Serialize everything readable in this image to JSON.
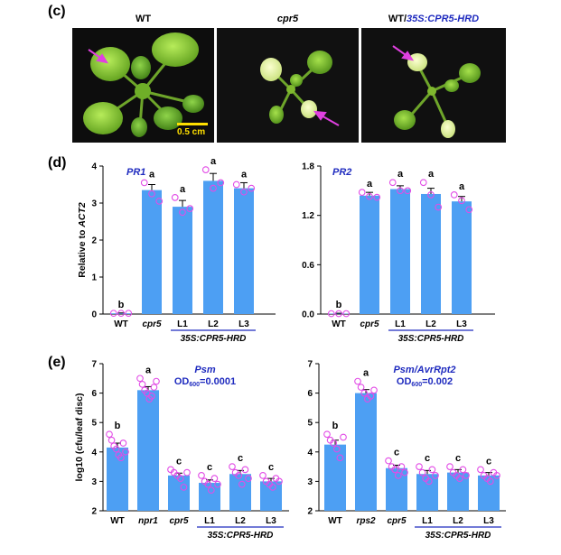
{
  "panels": {
    "c": "(c)",
    "d": "(d)",
    "e": "(e)"
  },
  "photos": [
    {
      "label": "WT",
      "italic": false
    },
    {
      "label": "cpr5",
      "italic": true
    },
    {
      "label_prefix": "WT/",
      "label_main": "35S:CPR5-HRD",
      "italic": true
    }
  ],
  "scale_bar": {
    "label": "0.5 cm"
  },
  "chart_data": [
    {
      "type": "bar",
      "panel": "d",
      "title": "PR1",
      "ylabel": "Relative to ACT2",
      "ylim": [
        0,
        4
      ],
      "yticks": [
        0,
        1,
        2,
        3,
        4
      ],
      "ytick_labels": [
        "0",
        "1",
        "2",
        "3",
        "4"
      ],
      "categories": [
        "WT",
        "cpr5",
        "L1",
        "L2",
        "L3"
      ],
      "values": [
        0.02,
        3.35,
        2.9,
        3.6,
        3.4
      ],
      "errors": [
        0.01,
        0.15,
        0.17,
        0.2,
        0.15
      ],
      "points": [
        [
          0.02,
          0.02,
          0.02
        ],
        [
          3.55,
          3.25,
          3.05
        ],
        [
          3.15,
          2.75,
          2.85
        ],
        [
          3.9,
          3.4,
          3.55
        ],
        [
          3.5,
          3.3,
          3.4
        ]
      ],
      "letters": [
        "b",
        "a",
        "a",
        "a",
        "a"
      ],
      "group_label": "35S:CPR5-HRD",
      "group_span": [
        2,
        4
      ]
    },
    {
      "type": "bar",
      "panel": "d",
      "title": "PR2",
      "ylabel": "",
      "ylim": [
        0,
        1.8
      ],
      "yticks": [
        0,
        0.6,
        1.2,
        1.8
      ],
      "ytick_labels": [
        "0.0",
        "0.6",
        "1.2",
        "1.8"
      ],
      "categories": [
        "WT",
        "cpr5",
        "L1",
        "L2",
        "L3"
      ],
      "values": [
        0.005,
        1.44,
        1.52,
        1.46,
        1.37
      ],
      "errors": [
        0.005,
        0.04,
        0.04,
        0.07,
        0.06
      ],
      "points": [
        [
          0.005,
          0.005,
          0.005
        ],
        [
          1.48,
          1.43,
          1.42
        ],
        [
          1.6,
          1.5,
          1.5
        ],
        [
          1.6,
          1.45,
          1.3
        ],
        [
          1.45,
          1.38,
          1.27
        ]
      ],
      "letters": [
        "b",
        "a",
        "a",
        "a",
        "a"
      ],
      "group_label": "35S:CPR5-HRD",
      "group_span": [
        2,
        4
      ]
    },
    {
      "type": "bar",
      "panel": "e",
      "title": "Psm",
      "subtitle_prefix": "OD",
      "subtitle_sub": "600",
      "subtitle_suffix": "=0.0001",
      "ylabel": "log10 (cfu/leaf disc)",
      "ylim": [
        2,
        7
      ],
      "yticks": [
        2,
        3,
        4,
        5,
        6,
        7
      ],
      "ytick_labels": [
        "2",
        "3",
        "4",
        "5",
        "6",
        "7"
      ],
      "categories": [
        "WT",
        "npr1",
        "cpr5",
        "L1",
        "L2",
        "L3"
      ],
      "values": [
        4.15,
        6.1,
        3.2,
        2.95,
        3.25,
        3.0
      ],
      "errors": [
        0.15,
        0.12,
        0.08,
        0.1,
        0.12,
        0.1
      ],
      "points": [
        [
          4.6,
          4.4,
          4.2,
          4.1,
          3.9,
          3.8,
          4.3,
          4.0
        ],
        [
          6.5,
          6.3,
          6.1,
          6.0,
          5.8,
          5.9,
          6.2,
          6.4
        ],
        [
          3.4,
          3.3,
          3.2,
          3.1,
          2.8,
          3.3
        ],
        [
          3.2,
          3.0,
          2.9,
          2.7,
          3.1,
          2.9
        ],
        [
          3.5,
          3.3,
          3.2,
          2.9,
          3.4,
          3.1
        ],
        [
          3.2,
          3.0,
          2.9,
          2.8,
          3.1,
          3.0
        ]
      ],
      "letters": [
        "b",
        "a",
        "c",
        "c",
        "c",
        "c"
      ],
      "group_label": "35S:CPR5-HRD",
      "group_span": [
        3,
        5
      ]
    },
    {
      "type": "bar",
      "panel": "e",
      "title": "Psm/AvrRpt2",
      "subtitle_prefix": "OD",
      "subtitle_sub": "600",
      "subtitle_suffix": "=0.002",
      "ylabel": "",
      "ylim": [
        2,
        7
      ],
      "yticks": [
        2,
        3,
        4,
        5,
        6,
        7
      ],
      "ytick_labels": [
        "2",
        "3",
        "4",
        "5",
        "6",
        "7"
      ],
      "categories": [
        "WT",
        "rps2",
        "cpr5",
        "L1",
        "L2",
        "L3"
      ],
      "values": [
        4.25,
        6.0,
        3.45,
        3.25,
        3.3,
        3.2
      ],
      "errors": [
        0.15,
        0.12,
        0.1,
        0.12,
        0.1,
        0.1
      ],
      "points": [
        [
          4.6,
          4.4,
          4.3,
          4.1,
          3.8,
          4.5
        ],
        [
          6.4,
          6.2,
          6.0,
          5.8,
          5.9,
          6.1
        ],
        [
          3.7,
          3.5,
          3.4,
          3.2,
          3.5,
          3.3
        ],
        [
          3.5,
          3.3,
          3.1,
          3.0,
          3.4,
          3.2
        ],
        [
          3.5,
          3.3,
          3.2,
          3.1,
          3.4,
          3.2
        ],
        [
          3.4,
          3.2,
          3.1,
          3.0,
          3.3,
          3.2
        ]
      ],
      "letters": [
        "b",
        "a",
        "c",
        "c",
        "c",
        "c"
      ],
      "group_label": "35S:CPR5-HRD",
      "group_span": [
        3,
        5
      ]
    }
  ]
}
